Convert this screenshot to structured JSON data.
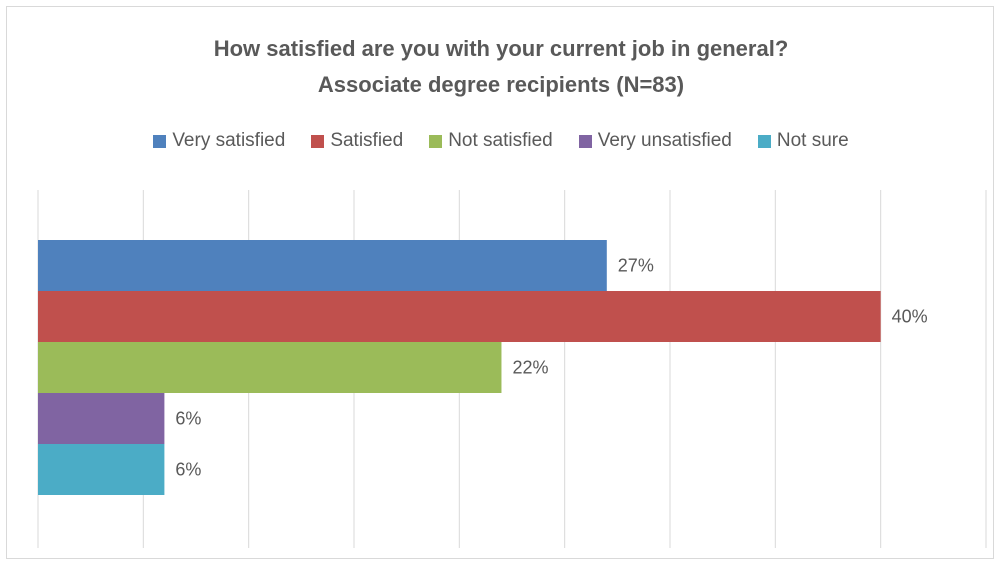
{
  "chart_data": {
    "type": "bar",
    "orientation": "horizontal",
    "title": "How satisfied are you with your current job in general?",
    "subtitle": "Associate degree recipients (N=83)",
    "series": [
      {
        "name": "Very satisfied",
        "value": 27,
        "label": "27%",
        "color": "#4f81bd"
      },
      {
        "name": "Satisfied",
        "value": 40,
        "label": "40%",
        "color": "#c0504d"
      },
      {
        "name": "Not satisfied",
        "value": 22,
        "label": "22%",
        "color": "#9bbb59"
      },
      {
        "name": "Very unsatisfied",
        "value": 6,
        "label": "6%",
        "color": "#8064a2"
      },
      {
        "name": "Not sure",
        "value": 6,
        "label": "6%",
        "color": "#4bacc6"
      }
    ],
    "xlim": [
      0,
      45
    ],
    "grid": true,
    "axis_labels_shown": false,
    "legend_position": "top"
  }
}
